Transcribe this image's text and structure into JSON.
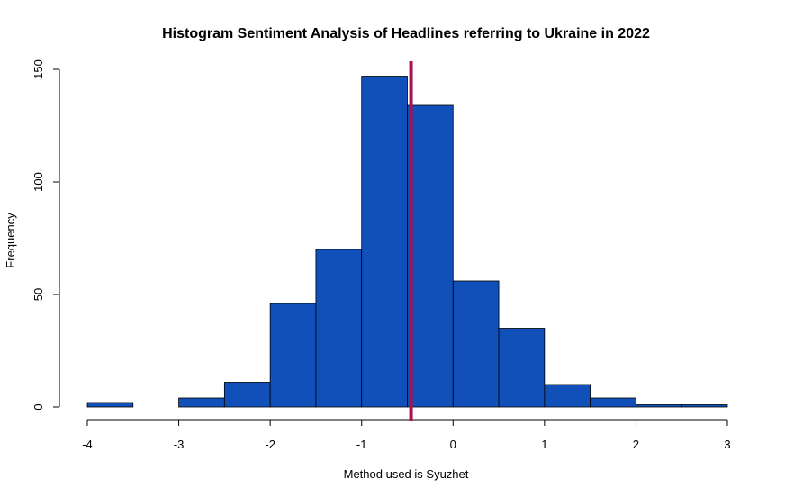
{
  "chart_data": {
    "type": "bar",
    "title": "Histogram Sentiment Analysis of Headlines referring to Ukraine in 2022",
    "xlabel": "Method used is Syuzhet",
    "ylabel": "Frequency",
    "bin_edges": [
      -4,
      -3.5,
      -3,
      -2.5,
      -2,
      -1.5,
      -1,
      -0.5,
      0,
      0.5,
      1,
      1.5,
      2,
      2.5,
      3
    ],
    "values": [
      2,
      0,
      4,
      11,
      46,
      70,
      147,
      134,
      56,
      35,
      10,
      4,
      1,
      1
    ],
    "xlim": [
      -4,
      3
    ],
    "ylim": [
      0,
      150
    ],
    "x_ticks": [
      "-4",
      "-3",
      "-2",
      "-1",
      "0",
      "1",
      "2",
      "3"
    ],
    "y_ticks": [
      "0",
      "50",
      "100",
      "150"
    ],
    "bar_color": "#1050b8",
    "mean_line": {
      "x": -0.46,
      "color": "#a8124f"
    },
    "grid": false,
    "legend": "none"
  }
}
